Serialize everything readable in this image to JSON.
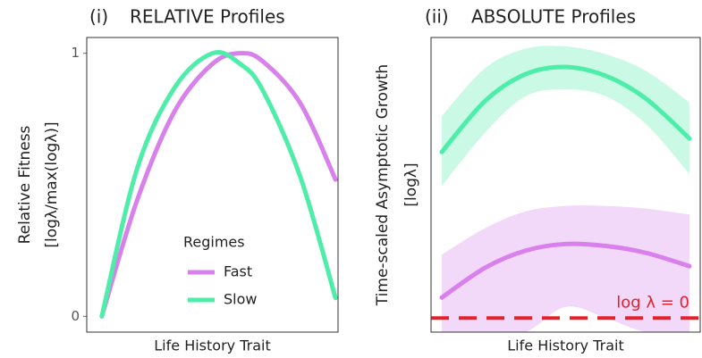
{
  "chart_data": [
    {
      "type": "line",
      "panel_label": "(i)",
      "title": "RELATIVE Profiles",
      "ylabel": [
        "Relative Fitness",
        "[logλ/max(logλ)]"
      ],
      "xlabel": "Life History Trait",
      "xlim": [
        0,
        1
      ],
      "ylim": [
        -0.06,
        1.06
      ],
      "yticks": [
        0,
        1
      ],
      "legend_title": "Regimes",
      "legend": "bottom center",
      "x": [
        0.06,
        0.2,
        0.35,
        0.5,
        0.61,
        0.7,
        0.85,
        0.99
      ],
      "series": [
        {
          "name": "Fast",
          "color": "#d880ec",
          "values": [
            0,
            0.44,
            0.78,
            0.96,
            1,
            0.97,
            0.81,
            0.52
          ]
        },
        {
          "name": "Slow",
          "color": "#4eedaa",
          "values": [
            0,
            0.56,
            0.87,
            1,
            0.96,
            0.86,
            0.53,
            0.07
          ]
        }
      ]
    },
    {
      "type": "band",
      "panel_label": "(ii)",
      "title": "ABSOLUTE Profiles",
      "ylabel": [
        "Time-scaled Asymptotic Growth",
        "[logλ]"
      ],
      "xlabel": "Life History Trait",
      "xlim": [
        0,
        1
      ],
      "ylim": [
        -0.05,
        1
      ],
      "hline": {
        "value": 0,
        "label": "log λ = 0",
        "color": "#e8202a"
      },
      "x": [
        0.04,
        0.2,
        0.35,
        0.5,
        0.65,
        0.8,
        0.96
      ],
      "series": [
        {
          "color": "#4eedaa",
          "values": [
            0.592,
            0.773,
            0.869,
            0.895,
            0.863,
            0.781,
            0.64
          ],
          "upper": [
            0.72,
            0.89,
            0.96,
            0.968,
            0.94,
            0.88,
            0.768
          ],
          "lower": [
            0.471,
            0.66,
            0.79,
            0.815,
            0.79,
            0.69,
            0.513
          ]
        },
        {
          "color": "#d880ec",
          "values": [
            0.073,
            0.179,
            0.24,
            0.264,
            0.257,
            0.232,
            0.185
          ],
          "upper": [
            0.226,
            0.32,
            0.38,
            0.4,
            0.4,
            0.39,
            0.369
          ],
          "lower": [
            -0.05,
            -0.05,
            -0.05,
            0.04,
            0,
            -0.05,
            -0.05
          ]
        }
      ]
    }
  ]
}
